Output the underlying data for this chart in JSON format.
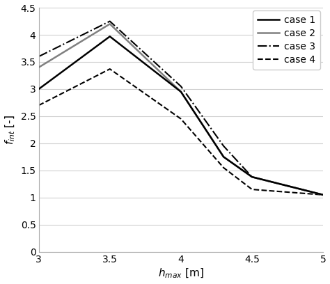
{
  "x": [
    3.0,
    3.5,
    4.0,
    4.3,
    4.5,
    5.0
  ],
  "case1": [
    3.0,
    3.97,
    2.95,
    1.75,
    1.38,
    1.05
  ],
  "case2": [
    3.4,
    4.2,
    2.95,
    1.75,
    1.38,
    1.05
  ],
  "case3": [
    3.6,
    4.25,
    3.05,
    1.95,
    1.38,
    1.05
  ],
  "case4": [
    2.7,
    3.37,
    2.45,
    1.55,
    1.15,
    1.05
  ],
  "xlabel": "$h_{max}$ [m]",
  "ylabel": "$f_{int}$ [-]",
  "xlim": [
    3.0,
    5.0
  ],
  "ylim": [
    0,
    4.5
  ],
  "xticks": [
    3.0,
    3.5,
    4.0,
    4.5,
    5.0
  ],
  "xtick_labels": [
    "3",
    "3.5",
    "4",
    "4.5",
    "5"
  ],
  "yticks": [
    0,
    0.5,
    1.0,
    1.5,
    2.0,
    2.5,
    3.0,
    3.5,
    4.0,
    4.5
  ],
  "ytick_labels": [
    "0",
    "0.5",
    "1",
    "1.5",
    "2",
    "2.5",
    "3",
    "3.5",
    "4",
    "4.5"
  ],
  "legend_labels": [
    "case 1",
    "case 2",
    "case 3",
    "case 4"
  ],
  "case1_color": "#000000",
  "case2_color": "#808080",
  "case3_color": "#000000",
  "case4_color": "#000000",
  "background_color": "#ffffff",
  "grid_color": "#d0d0d0",
  "spine_color": "#aaaaaa"
}
